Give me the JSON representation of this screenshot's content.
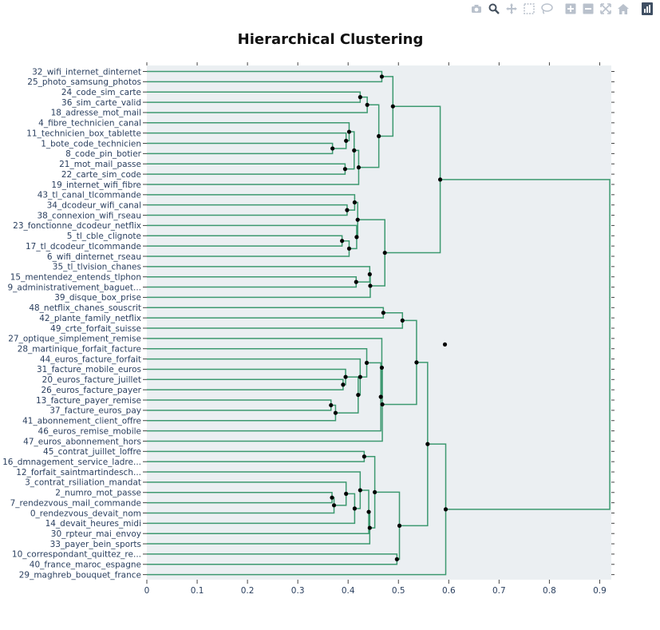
{
  "modebar": {
    "buttons": [
      {
        "name": "camera-icon",
        "active": false
      },
      {
        "name": "zoom-icon",
        "active": true
      },
      {
        "name": "pan-icon",
        "active": false
      },
      {
        "name": "box-select-icon",
        "active": false
      },
      {
        "name": "lasso-select-icon",
        "active": false
      },
      {
        "name": "zoom-in-icon",
        "active": false
      },
      {
        "name": "zoom-out-icon",
        "active": false
      },
      {
        "name": "autoscale-icon",
        "active": false
      },
      {
        "name": "reset-axes-icon",
        "active": false
      },
      {
        "name": "plotly-logo-icon",
        "active": false
      }
    ]
  },
  "colors": {
    "link": "#3d9970",
    "node": "#000000",
    "plot_bg": "#ebeff2",
    "text": "#2a3f5f"
  },
  "chart_data": {
    "type": "dendrogram",
    "title": "Hierarchical Clustering",
    "xlabel": "",
    "ylabel": "",
    "xlim": [
      0,
      0.92
    ],
    "x_ticks": [
      0,
      0.1,
      0.2,
      0.3,
      0.4,
      0.5,
      0.6,
      0.7,
      0.8,
      0.9
    ],
    "x_tick_labels": [
      "0",
      "0.1",
      "0.2",
      "0.3",
      "0.4",
      "0.5",
      "0.6",
      "0.7",
      "0.8",
      "0.9"
    ],
    "grid": false,
    "leaves": [
      "32_wifi_internet_dinternet",
      "25_photo_samsung_photos",
      "24_code_sim_carte",
      "36_sim_carte_valid",
      "18_adresse_mot_mail",
      "4_fibre_technicien_canal",
      "11_technicien_box_tablette",
      "1_bote_code_technicien",
      "8_code_pin_botier",
      "21_mot_mail_passe",
      "22_carte_sim_code",
      "19_internet_wifi_fibre",
      "43_tl_canal_tlcommande",
      "34_dcodeur_wifi_canal",
      "38_connexion_wifi_rseau",
      "23_fonctionne_dcodeur_netflix",
      "5_tl_cble_clignote",
      "17_tl_dcodeur_tlcommande",
      "6_wifi_dinternet_rseau",
      "35_tl_tlvision_chanes",
      "15_mentendez_entends_tlphon",
      "9_administrativement_baguet...",
      "39_disque_box_prise",
      "48_netflix_chanes_souscrit",
      "42_plante_family_netflix",
      "49_crte_forfait_suisse",
      "27_optique_simplement_remise",
      "28_martinique_forfait_facture",
      "44_euros_facture_forfait",
      "31_facture_mobile_euros",
      "20_euros_facture_juillet",
      "26_euros_facture_payer",
      "13_facture_payer_remise",
      "37_facture_euros_pay",
      "41_abonnement_client_offre",
      "46_euros_remise_mobile",
      "47_euros_abonnement_hors",
      "45_contrat_juillet_loffre",
      "16_dmnagement_service_ladre...",
      "12_forfait_saintmartindesch...",
      "3_contrat_rsiliation_mandat",
      "2_numro_mot_passe",
      "7_rendezvous_mail_commande",
      "0_rendezvous_devait_nom",
      "14_devait_heures_midi",
      "30_rpteur_mai_envoy",
      "33_payer_bein_sports",
      "10_correspondant_quittez_re...",
      "40_france_maroc_espagne",
      "29_maghreb_bouquet_france"
    ],
    "merges": [
      {
        "a": 0,
        "b": 1,
        "h": 0.467
      },
      {
        "a": 2,
        "b": 3,
        "h": 0.424
      },
      {
        "a": "m1",
        "b": 4,
        "h": 0.438
      },
      {
        "a": 7,
        "b": 8,
        "h": 0.369
      },
      {
        "a": "m3",
        "b": 6,
        "h": 0.396
      },
      {
        "a": "m4",
        "b": 5,
        "h": 0.402
      },
      {
        "a": 9,
        "b": 10,
        "h": 0.394
      },
      {
        "a": "m5",
        "b": "m6",
        "h": 0.412
      },
      {
        "a": "m7",
        "b": 11,
        "h": 0.421
      },
      {
        "a": "m2",
        "b": "m8",
        "h": 0.461
      },
      {
        "a": "m0",
        "b": "m9",
        "h": 0.489
      },
      {
        "a": 13,
        "b": 14,
        "h": 0.398
      },
      {
        "a": "m11",
        "b": 12,
        "h": 0.413
      },
      {
        "a": 16,
        "b": 17,
        "h": 0.388
      },
      {
        "a": "m13",
        "b": 18,
        "h": 0.402
      },
      {
        "a": "m14",
        "b": 15,
        "h": 0.417
      },
      {
        "a": "m12",
        "b": "m15",
        "h": 0.419
      },
      {
        "a": 20,
        "b": 21,
        "h": 0.416
      },
      {
        "a": "m17",
        "b": 19,
        "h": 0.443
      },
      {
        "a": "m18",
        "b": 22,
        "h": 0.444
      },
      {
        "a": "m16",
        "b": "m19",
        "h": 0.473
      },
      {
        "a": "m10",
        "b": "m20",
        "h": 0.583
      },
      {
        "a": 23,
        "b": 24,
        "h": 0.47
      },
      {
        "a": "m22",
        "b": 25,
        "h": 0.508
      },
      {
        "a": 30,
        "b": 31,
        "h": 0.39
      },
      {
        "a": "m24",
        "b": 29,
        "h": 0.395
      },
      {
        "a": 32,
        "b": 33,
        "h": 0.366
      },
      {
        "a": "m26",
        "b": 34,
        "h": 0.375
      },
      {
        "a": "m25",
        "b": "m27",
        "h": 0.42
      },
      {
        "a": "m28",
        "b": 28,
        "h": 0.424
      },
      {
        "a": "m29",
        "b": 27,
        "h": 0.437
      },
      {
        "a": "m30",
        "b": 35,
        "h": 0.465
      },
      {
        "a": "m31",
        "b": 26,
        "h": 0.467
      },
      {
        "a": "m32",
        "b": 36,
        "h": 0.468
      },
      {
        "a": "m23",
        "b": "m33",
        "h": 0.536
      },
      {
        "a": 37,
        "b": 38,
        "h": 0.432
      },
      {
        "a": 41,
        "b": 42,
        "h": 0.368
      },
      {
        "a": "m36",
        "b": 43,
        "h": 0.372
      },
      {
        "a": "m37",
        "b": 40,
        "h": 0.396
      },
      {
        "a": "m38",
        "b": 44,
        "h": 0.413
      },
      {
        "a": "m39",
        "b": 39,
        "h": 0.424
      },
      {
        "a": "m40",
        "b": 45,
        "h": 0.441
      },
      {
        "a": "m41",
        "b": 46,
        "h": 0.443
      },
      {
        "a": "m35",
        "b": "m42",
        "h": 0.453
      },
      {
        "a": 47,
        "b": 48,
        "h": 0.497
      },
      {
        "a": "m43",
        "b": "m44",
        "h": 0.502
      },
      {
        "a": "m34",
        "b": "m45",
        "h": 0.558
      },
      {
        "a": "m46",
        "b": 49,
        "h": 0.594
      },
      {
        "a": "m21",
        "b": "m47",
        "h": 0.92
      }
    ]
  }
}
